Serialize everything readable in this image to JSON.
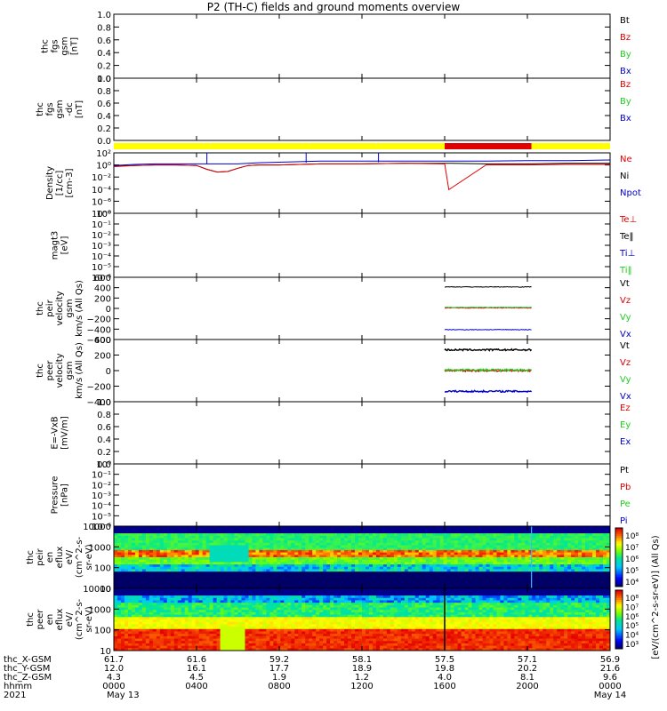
{
  "title": "P2 (TH-C) fields and ground moments overview",
  "colors": {
    "black": "#000000",
    "red": "#e00000",
    "green": "#22cc22",
    "blue": "#0000cc",
    "yellow": "#ffff00"
  },
  "panels": [
    {
      "id": "fgs-gsm",
      "ylabel": [
        "thc",
        "fgs",
        "gsm",
        "[nT]"
      ],
      "ticks": [
        "1.0",
        "0.8",
        "0.6",
        "0.4",
        "0.2",
        "0.0"
      ],
      "legend": [
        {
          "t": "Bt",
          "c": "black"
        },
        {
          "t": "Bz",
          "c": "red"
        },
        {
          "t": "By",
          "c": "green"
        },
        {
          "t": "Bx",
          "c": "blue"
        }
      ]
    },
    {
      "id": "fgs-gsm-dc",
      "ylabel": [
        "thc",
        "fgs",
        "gsm",
        "-dc",
        "[nT]"
      ],
      "ticks": [
        "1.0",
        "0.8",
        "0.6",
        "0.4",
        "0.2",
        "0.0"
      ],
      "legend": [
        {
          "t": "Bz",
          "c": "red"
        },
        {
          "t": "By",
          "c": "green"
        },
        {
          "t": "Bx",
          "c": "blue"
        }
      ]
    },
    {
      "id": "density",
      "ylabel": [
        "Density",
        "[1/cc]",
        "[cm-3]"
      ],
      "ticks": [
        "10²",
        "10⁰",
        "10⁻²",
        "10⁻⁴",
        "10⁻⁶",
        "10⁻⁸"
      ],
      "legend": [
        {
          "t": "Ne",
          "c": "red"
        },
        {
          "t": "Ni",
          "c": "black"
        },
        {
          "t": "Npot",
          "c": "blue"
        }
      ]
    },
    {
      "id": "temp",
      "ylabel": [
        "magt3",
        "[eV]"
      ],
      "ticks": [
        "10⁰",
        "10⁻¹",
        "10⁻²",
        "10⁻³",
        "10⁻⁴",
        "10⁻⁵",
        "10⁻⁶"
      ],
      "legend": [
        {
          "t": "Te⊥",
          "c": "red"
        },
        {
          "t": "Te‖",
          "c": "black"
        },
        {
          "t": "Ti⊥",
          "c": "blue"
        },
        {
          "t": "Ti‖",
          "c": "green"
        }
      ]
    },
    {
      "id": "peir-vel",
      "ylabel": [
        "thc",
        "peir",
        "velocity",
        "gsm",
        "km/s (All Qs)"
      ],
      "ticks": [
        "600",
        "400",
        "200",
        "0",
        "−200",
        "−400",
        "−600"
      ],
      "legend": [
        {
          "t": "Vt",
          "c": "black"
        },
        {
          "t": "Vz",
          "c": "red"
        },
        {
          "t": "Vy",
          "c": "green"
        },
        {
          "t": "Vx",
          "c": "blue"
        }
      ]
    },
    {
      "id": "peer-vel",
      "ylabel": [
        "thc",
        "peer",
        "velocity",
        "gsm",
        "km/s (All Qs)"
      ],
      "ticks": [
        "400",
        "200",
        "0",
        "−200",
        "−400"
      ],
      "legend": [
        {
          "t": "Vt",
          "c": "black"
        },
        {
          "t": "Vz",
          "c": "red"
        },
        {
          "t": "Vy",
          "c": "green"
        },
        {
          "t": "Vx",
          "c": "blue"
        }
      ]
    },
    {
      "id": "efield",
      "ylabel": [
        "E=-VxB",
        "[mV/m]"
      ],
      "ticks": [
        "1.0",
        "0.8",
        "0.6",
        "0.4",
        "0.2",
        "0.0"
      ],
      "legend": [
        {
          "t": "Ez",
          "c": "red"
        },
        {
          "t": "Ey",
          "c": "green"
        },
        {
          "t": "Ex",
          "c": "blue"
        }
      ]
    },
    {
      "id": "pressure",
      "ylabel": [
        "Pressure",
        "[nPa]"
      ],
      "ticks": [
        "10⁰",
        "10⁻¹",
        "10⁻²",
        "10⁻³",
        "10⁻⁴",
        "10⁻⁵",
        "10⁻⁶"
      ],
      "legend": [
        {
          "t": "Pt",
          "c": "black"
        },
        {
          "t": "Pb",
          "c": "red"
        },
        {
          "t": "Pe",
          "c": "green"
        },
        {
          "t": "Pi",
          "c": "blue"
        }
      ]
    },
    {
      "id": "peir-eflux",
      "ylabel": [
        "thc",
        "peir",
        "en",
        "eflux",
        "eV/",
        "(cm^2-s-",
        "sr-eV)"
      ],
      "ticks": [
        "10000",
        "1000",
        "100",
        "10"
      ],
      "legend": []
    },
    {
      "id": "peer-eflux",
      "ylabel": [
        "thc",
        "peer",
        "en",
        "eflux",
        "eV/",
        "(cm^2-s-",
        "sr-eV)"
      ],
      "ticks": [
        "10000",
        "1000",
        "100",
        "10"
      ],
      "legend": []
    }
  ],
  "colorbar": {
    "label": "[eV/(cm^2-s-sr-eV)] (All Qs)",
    "ticks1": [
      "10⁸",
      "10⁷",
      "10⁶",
      "10⁵",
      "10⁴"
    ],
    "ticks2": [
      "10⁸",
      "10⁷",
      "10⁶",
      "10⁵",
      "10⁴",
      "10³"
    ]
  },
  "footer": {
    "row_labels": [
      "thc_X-GSM",
      "thc_Y-GSM",
      "thc_Z-GSM",
      "hhmm",
      "2021"
    ],
    "columns": [
      {
        "x": "61.7",
        "y": "12.0",
        "z": "4.3",
        "hhmm": "0000",
        "date": "May 13"
      },
      {
        "x": "61.6",
        "y": "16.1",
        "z": "4.5",
        "hhmm": "0400",
        "date": ""
      },
      {
        "x": "59.2",
        "y": "17.7",
        "z": "1.9",
        "hhmm": "0800",
        "date": ""
      },
      {
        "x": "58.1",
        "y": "18.9",
        "z": "1.2",
        "hhmm": "1200",
        "date": ""
      },
      {
        "x": "57.5",
        "y": "19.8",
        "z": "4.0",
        "hhmm": "1600",
        "date": ""
      },
      {
        "x": "57.1",
        "y": "20.2",
        "z": "8.1",
        "hhmm": "2000",
        "date": ""
      },
      {
        "x": "56.9",
        "y": "21.6",
        "z": "9.6",
        "hhmm": "0000",
        "date": "May 14"
      }
    ]
  },
  "chart_data": {
    "type": "line",
    "title": "P2 (TH-C) fields and ground moments overview",
    "x_hours": [
      0,
      4,
      8,
      12,
      16,
      20,
      24
    ],
    "mode_bar": [
      {
        "from_hr": 0,
        "to_hr": 16.0,
        "color": "yellow"
      },
      {
        "from_hr": 16.0,
        "to_hr": 20.2,
        "color": "red"
      },
      {
        "from_hr": 20.2,
        "to_hr": 24,
        "color": "yellow"
      }
    ],
    "density_log10": {
      "hours": [
        0,
        1,
        2,
        3,
        4,
        4.5,
        5,
        5.5,
        6,
        6.5,
        7,
        8,
        10,
        12,
        14,
        16,
        16.2,
        18,
        20,
        22,
        24
      ],
      "Ni": [
        0.1,
        0.2,
        0.3,
        0.3,
        0.2,
        -0.5,
        -1.0,
        -0.9,
        -0.3,
        0.2,
        0.3,
        0.3,
        0.5,
        0.5,
        0.6,
        0.6,
        0.6,
        0.5,
        0.5,
        0.6,
        0.6
      ],
      "Ne": [
        0.0,
        0.2,
        0.3,
        0.3,
        0.2,
        -0.5,
        -1.0,
        -0.9,
        -0.3,
        0.2,
        0.3,
        0.3,
        0.5,
        0.5,
        0.6,
        0.5,
        -4.2,
        0.3,
        0.3,
        0.4,
        0.4
      ],
      "Npot": [
        0.2,
        0.4,
        0.5,
        0.5,
        0.5,
        0.5,
        0.5,
        0.5,
        0.5,
        0.6,
        0.7,
        0.8,
        1.0,
        1.0,
        1.0,
        1.0,
        1.0,
        1.0,
        1.1,
        1.1,
        1.2
      ]
    },
    "peir_velocity": {
      "hours": [
        16.0,
        20.2
      ],
      "Vt": 415,
      "Vz": 10,
      "Vy": 20,
      "Vx": -410
    },
    "peer_velocity": {
      "hours": [
        16.0,
        20.2
      ],
      "Vt": 300,
      "Vz": 0,
      "Vy": 10,
      "Vx": -300
    }
  }
}
